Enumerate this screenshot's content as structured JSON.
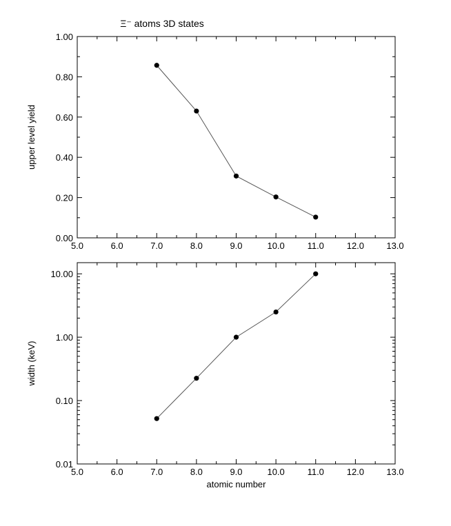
{
  "chart_data": [
    {
      "type": "line",
      "title": "Ξ⁻ atoms 3D states",
      "xlabel": "",
      "ylabel": "upper level yield",
      "xlim": [
        5.0,
        13.0
      ],
      "ylim": [
        0.0,
        1.0
      ],
      "x_ticks": [
        "5.0",
        "6.0",
        "7.0",
        "8.0",
        "9.0",
        "10.0",
        "11.0",
        "12.0",
        "13.0"
      ],
      "y_ticks": [
        "0.00",
        "0.20",
        "0.40",
        "0.60",
        "0.80",
        "1.00"
      ],
      "grid": false,
      "series": [
        {
          "x": [
            7.0,
            8.0,
            9.0,
            10.0,
            11.0
          ],
          "y": [
            0.857,
            0.63,
            0.307,
            0.203,
            0.103
          ]
        }
      ]
    },
    {
      "type": "line",
      "title": "",
      "xlabel": "atomic number",
      "ylabel": "width (keV)",
      "xlim": [
        5.0,
        13.0
      ],
      "ylim": [
        0.01,
        15.0
      ],
      "yscale": "log",
      "x_ticks": [
        "5.0",
        "6.0",
        "7.0",
        "8.0",
        "9.0",
        "10.0",
        "11.0",
        "12.0",
        "13.0"
      ],
      "y_ticks": [
        "0.01",
        "0.10",
        "1.00",
        "10.00"
      ],
      "grid": false,
      "series": [
        {
          "x": [
            7.0,
            8.0,
            9.0,
            10.0,
            11.0
          ],
          "y": [
            0.052,
            0.225,
            1.0,
            2.5,
            10.0
          ]
        }
      ]
    }
  ]
}
